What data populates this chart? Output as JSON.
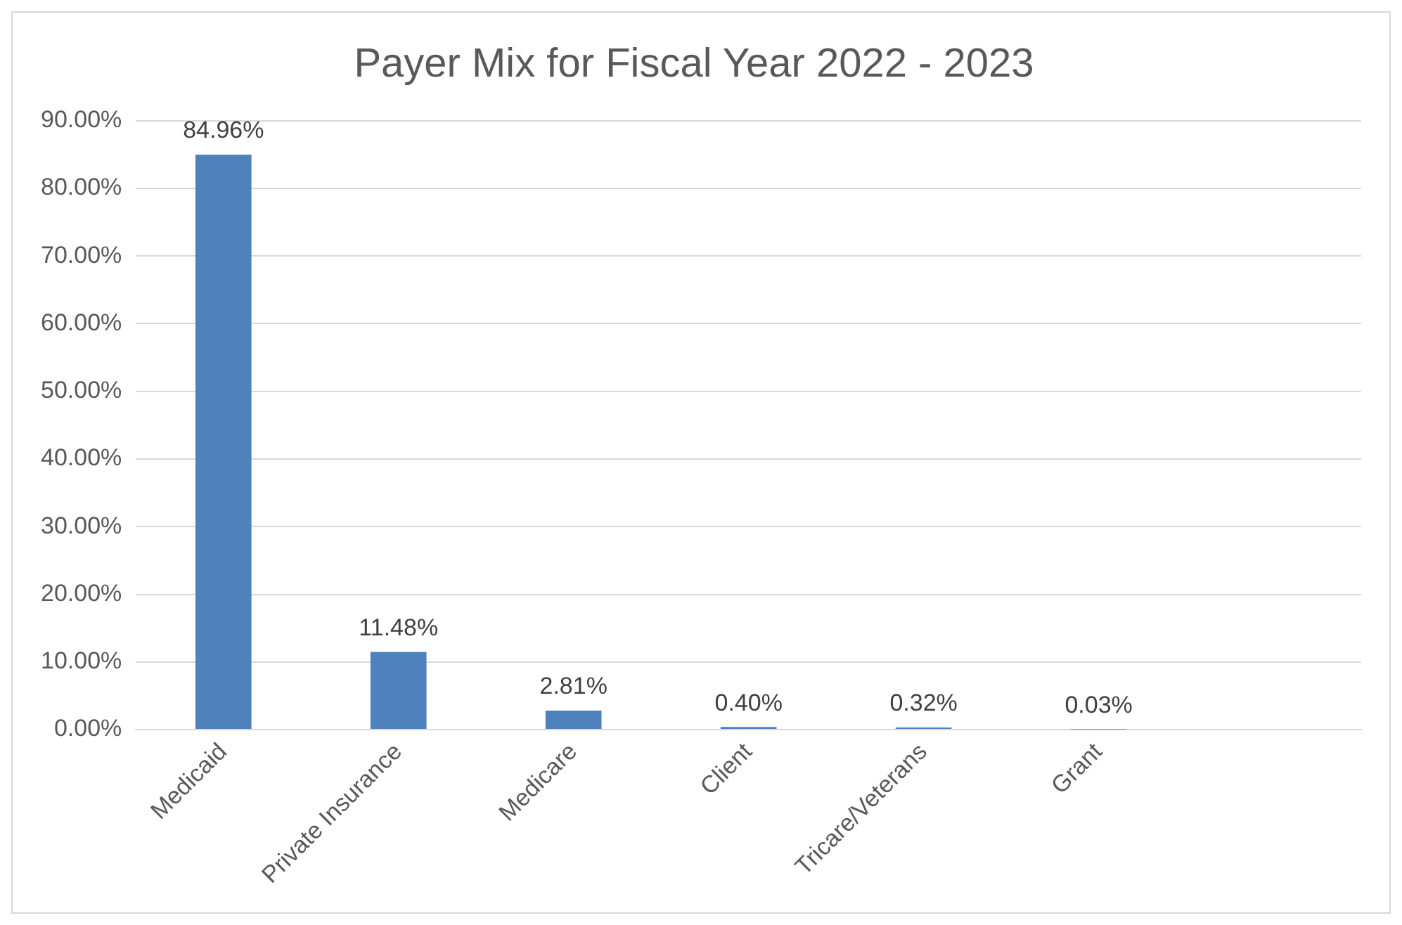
{
  "chart_data": {
    "type": "bar",
    "title": "Payer Mix for Fiscal Year 2022 - 2023",
    "categories": [
      "Medicaid",
      "Private Insurance",
      "Medicare",
      "Client",
      "Tricare/Veterans",
      "Grant",
      null
    ],
    "values": [
      84.96,
      11.48,
      2.81,
      0.4,
      0.32,
      0.03,
      null
    ],
    "value_labels": [
      "84.96%",
      "11.48%",
      "2.81%",
      "0.40%",
      "0.32%",
      "0.03%",
      null
    ],
    "color": "#4f81bd",
    "ylim": [
      0,
      90
    ],
    "yticks": [
      {
        "value": 0,
        "label": "0.00%"
      },
      {
        "value": 10,
        "label": "10.00%"
      },
      {
        "value": 20,
        "label": "20.00%"
      },
      {
        "value": 30,
        "label": "30.00%"
      },
      {
        "value": 40,
        "label": "40.00%"
      },
      {
        "value": 50,
        "label": "50.00%"
      },
      {
        "value": 60,
        "label": "60.00%"
      },
      {
        "value": 70,
        "label": "70.00%"
      },
      {
        "value": 80,
        "label": "80.00%"
      },
      {
        "value": 90,
        "label": "90.00%"
      }
    ],
    "grid": "y",
    "legend": false
  }
}
